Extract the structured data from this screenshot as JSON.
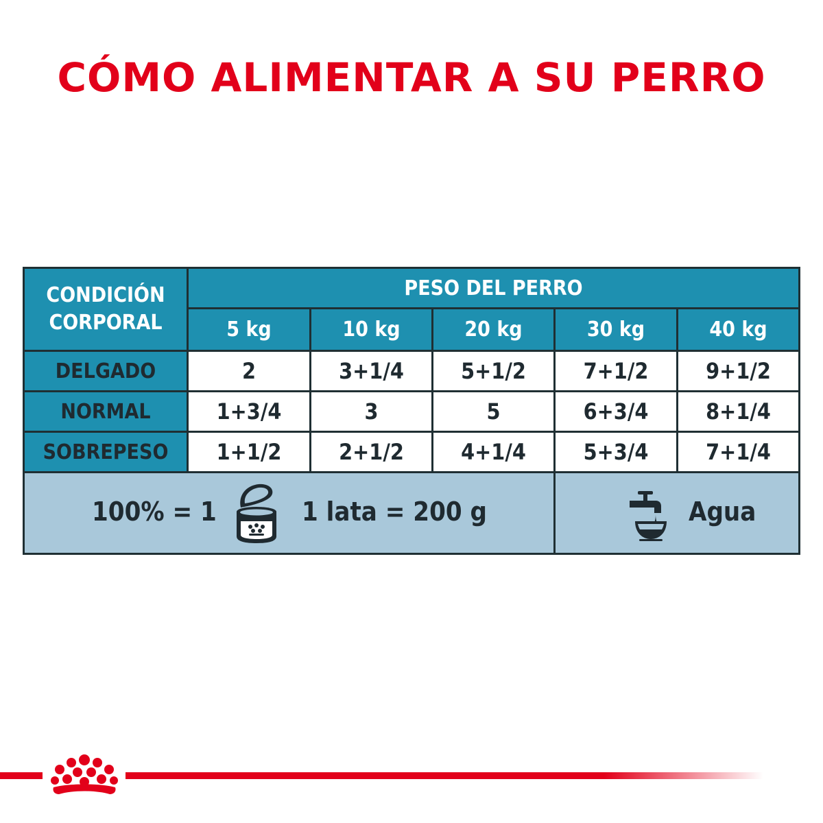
{
  "title": "CÓMO ALIMENTAR A SU PERRO",
  "table": {
    "condition_header_line1": "CONDICIÓN",
    "condition_header_line2": "CORPORAL",
    "weight_header": "PESO DEL PERRO",
    "weights": [
      "5 kg",
      "10 kg",
      "20 kg",
      "30 kg",
      "40 kg"
    ],
    "rows": [
      {
        "label": "DELGADO",
        "values": [
          "2",
          "3+1/4",
          "5+1/2",
          "7+1/2",
          "9+1/2"
        ]
      },
      {
        "label": "NORMAL",
        "values": [
          "1+3/4",
          "3",
          "5",
          "6+3/4",
          "8+1/4"
        ]
      },
      {
        "label": "SOBREPESO",
        "values": [
          "1+1/2",
          "2+1/2",
          "4+1/4",
          "5+3/4",
          "7+1/4"
        ]
      }
    ]
  },
  "footer": {
    "ratio": "100% = 1",
    "can_icon": "food-can-icon",
    "can_weight": "1 lata = 200 g",
    "water_icon": "water-tap-bowl-icon",
    "water_label": "Agua"
  },
  "brand_icon": "royal-canin-crown-logo",
  "colors": {
    "title_red": "#e2001a",
    "header_teal": "#1e90b0",
    "footer_light_blue": "#a9c8da",
    "text_dark": "#1f2a30"
  }
}
